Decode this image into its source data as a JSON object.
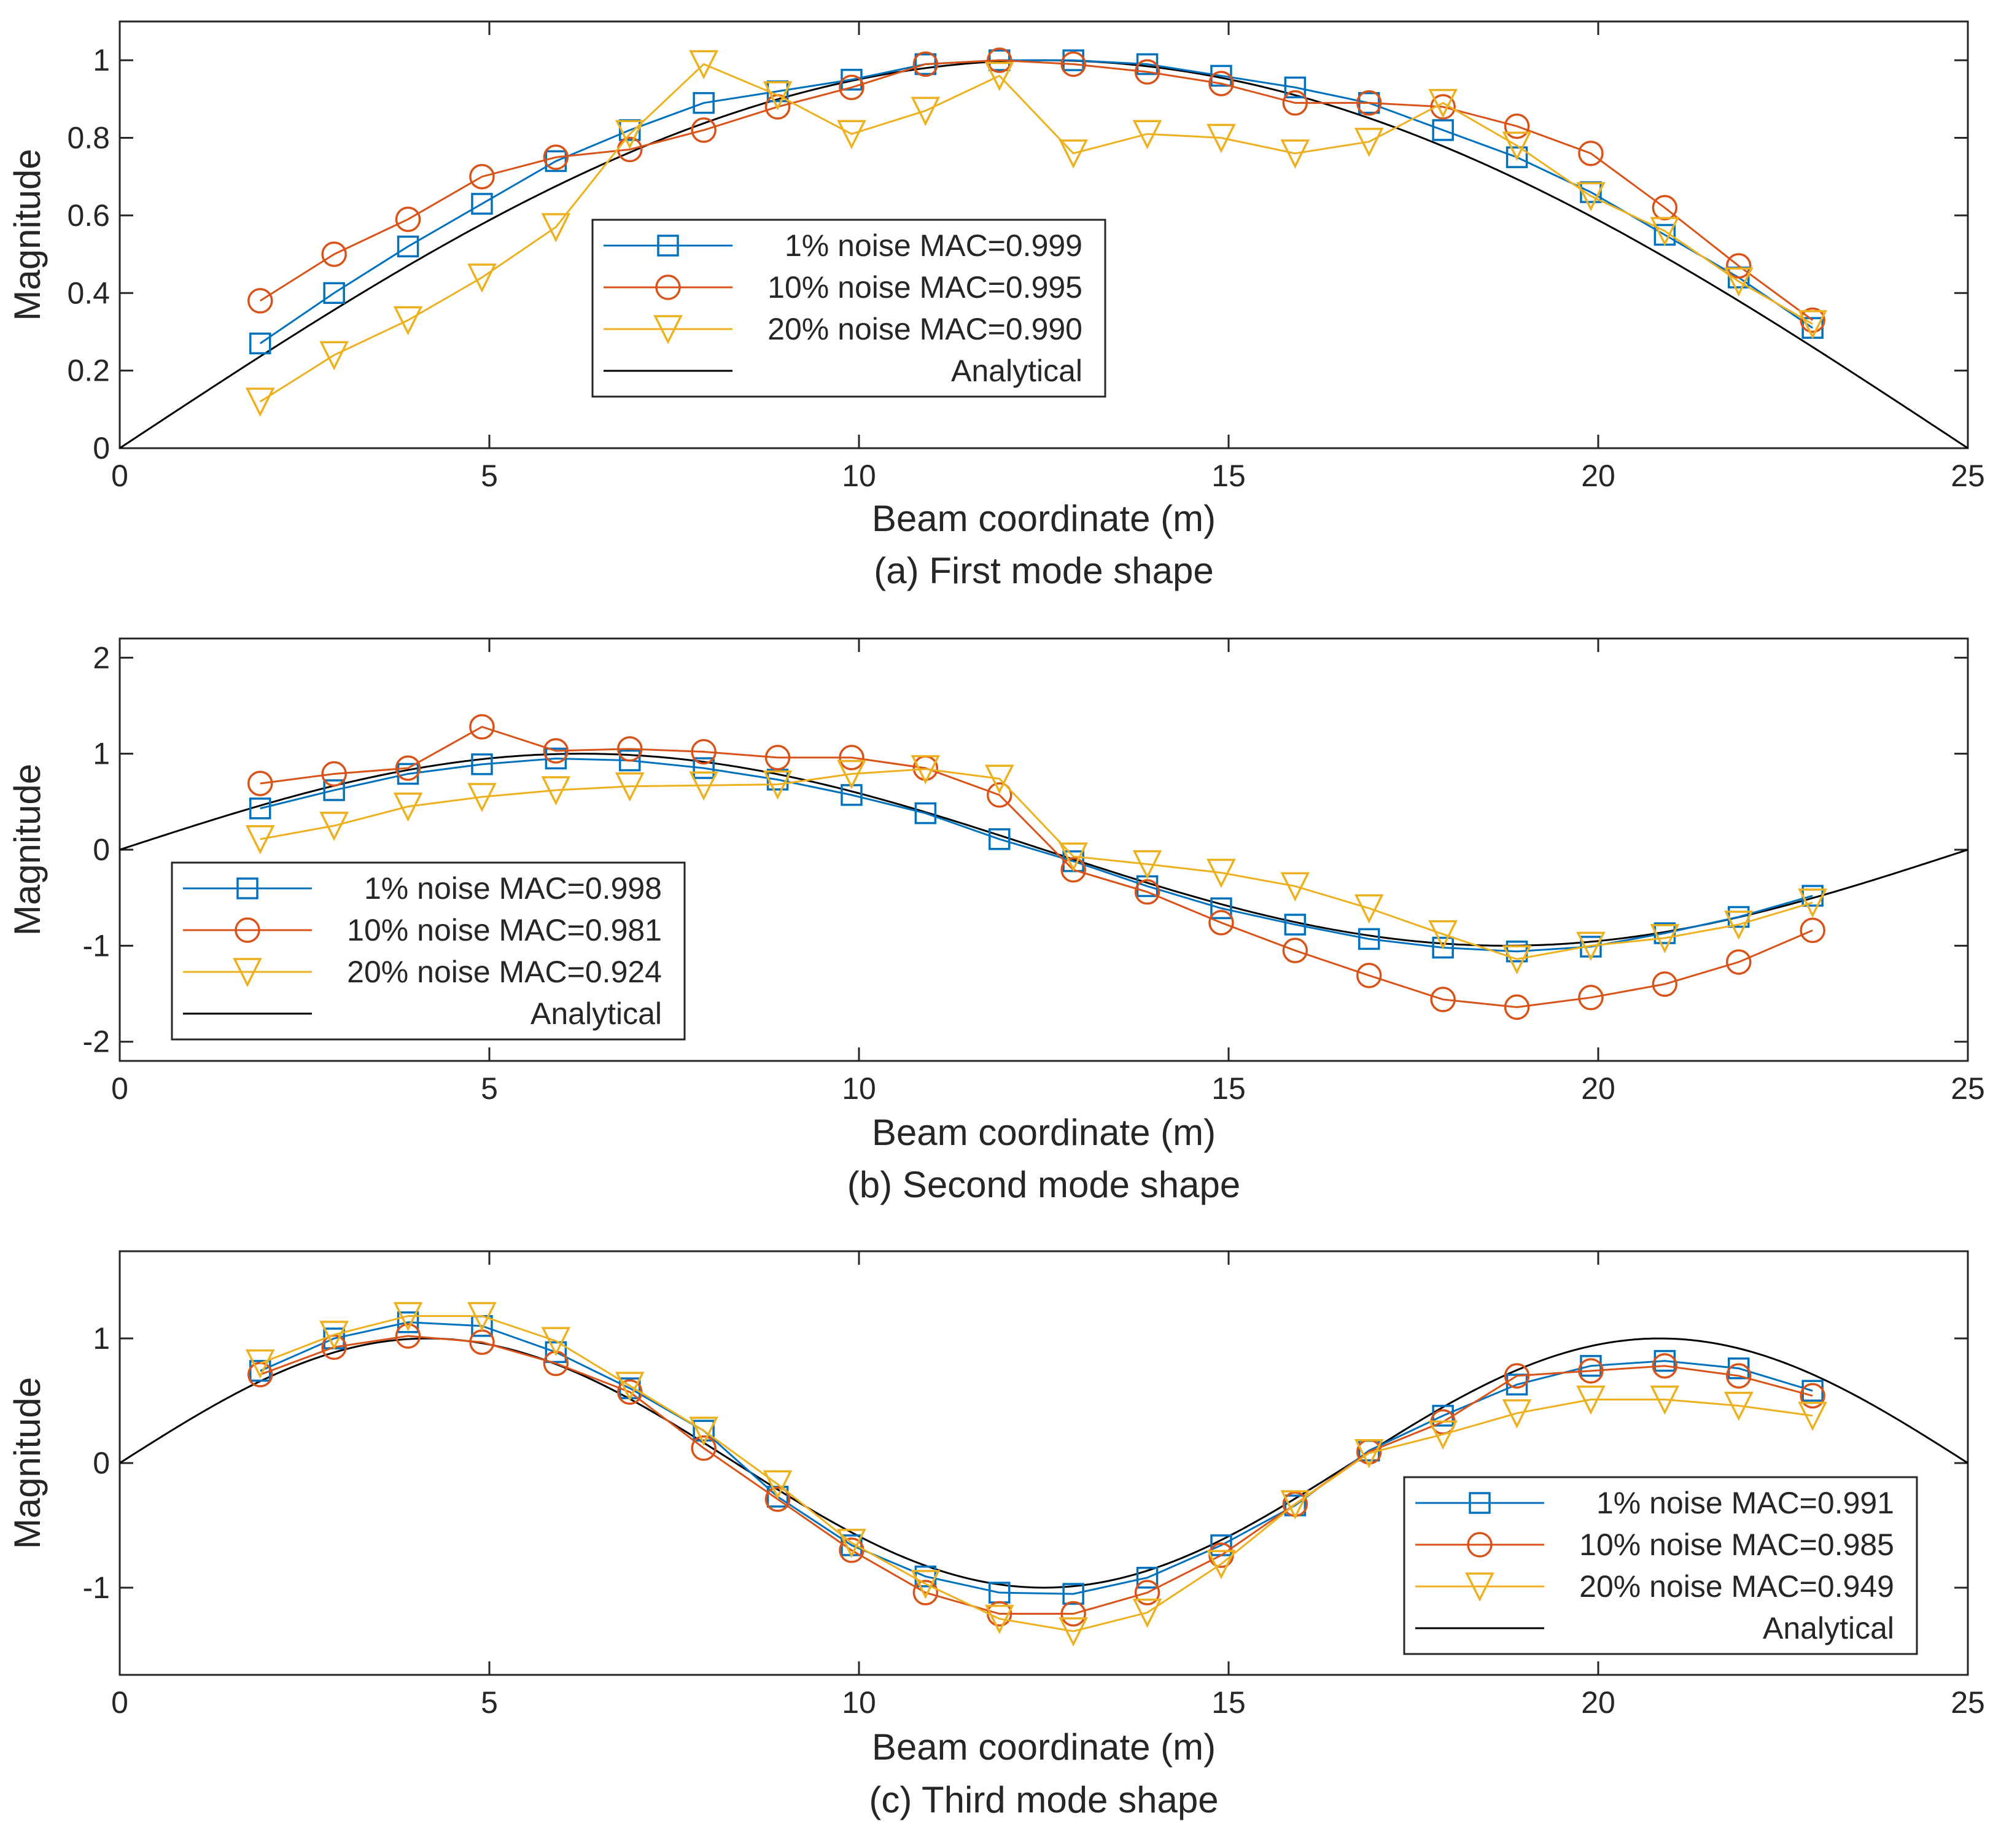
{
  "colors": {
    "noise1": "#0072BD",
    "noise10": "#D95319",
    "noise20": "#EDB120",
    "analytical": "#000000",
    "axis": "#262626"
  },
  "chart_data": [
    {
      "type": "line",
      "caption": "(a) First mode shape",
      "xlabel": "Beam coordinate (m)",
      "ylabel": "Magnitude",
      "xlim": [
        0,
        25
      ],
      "ylim": [
        0,
        1.1
      ],
      "xticks": [
        0,
        5,
        10,
        15,
        20,
        25
      ],
      "yticks": [
        0,
        0.2,
        0.4,
        0.6,
        0.8,
        1
      ],
      "ytick_labels": [
        "0",
        "0.2",
        "0.4",
        "0.6",
        "0.8",
        "1"
      ],
      "legend_position": "center-left",
      "analytical": {
        "name": "Analytical",
        "mode": 1,
        "length": 25
      },
      "x": [
        1.9,
        2.9,
        3.9,
        4.9,
        5.9,
        6.9,
        7.9,
        8.9,
        9.9,
        10.9,
        11.9,
        12.9,
        13.9,
        14.9,
        15.9,
        16.9,
        17.9,
        18.9,
        19.9,
        20.9,
        21.9,
        22.9
      ],
      "series": [
        {
          "name": "1% noise MAC=0.999",
          "marker": "square",
          "values": [
            0.27,
            0.4,
            0.52,
            0.63,
            0.74,
            0.82,
            0.89,
            0.92,
            0.95,
            0.99,
            1.0,
            1.0,
            0.99,
            0.96,
            0.93,
            0.89,
            0.82,
            0.75,
            0.66,
            0.55,
            0.44,
            0.31
          ]
        },
        {
          "name": "10% noise MAC=0.995",
          "marker": "circle",
          "values": [
            0.38,
            0.5,
            0.59,
            0.7,
            0.75,
            0.77,
            0.82,
            0.88,
            0.93,
            0.99,
            1.0,
            0.99,
            0.97,
            0.94,
            0.89,
            0.89,
            0.88,
            0.83,
            0.76,
            0.62,
            0.47,
            0.33
          ]
        },
        {
          "name": "20% noise MAC=0.990",
          "marker": "triangle-down",
          "values": [
            0.12,
            0.24,
            0.33,
            0.44,
            0.57,
            0.81,
            0.99,
            0.91,
            0.81,
            0.87,
            0.96,
            0.76,
            0.81,
            0.8,
            0.76,
            0.79,
            0.89,
            0.78,
            0.65,
            0.56,
            0.43,
            0.32
          ]
        }
      ]
    },
    {
      "type": "line",
      "caption": "(b) Second mode shape",
      "xlabel": "Beam coordinate (m)",
      "ylabel": "Magnitude",
      "xlim": [
        0,
        25
      ],
      "ylim": [
        -2.2,
        2.2
      ],
      "xticks": [
        0,
        5,
        10,
        15,
        20,
        25
      ],
      "yticks": [
        -2,
        -1,
        0,
        1,
        2
      ],
      "ytick_labels": [
        "-2",
        "-1",
        "0",
        "1",
        "2"
      ],
      "legend_position": "bottom-left",
      "analytical": {
        "name": "Analytical",
        "mode": 2,
        "length": 25
      },
      "x": [
        1.9,
        2.9,
        3.9,
        4.9,
        5.9,
        6.9,
        7.9,
        8.9,
        9.9,
        10.9,
        11.9,
        12.9,
        13.9,
        14.9,
        15.9,
        16.9,
        17.9,
        18.9,
        19.9,
        20.9,
        21.9,
        22.9
      ],
      "series": [
        {
          "name": "1% noise MAC=0.998",
          "marker": "square",
          "values": [
            0.43,
            0.62,
            0.79,
            0.89,
            0.95,
            0.93,
            0.85,
            0.73,
            0.57,
            0.38,
            0.11,
            -0.12,
            -0.38,
            -0.61,
            -0.78,
            -0.93,
            -1.02,
            -1.06,
            -1.01,
            -0.87,
            -0.7,
            -0.48
          ]
        },
        {
          "name": "10% noise MAC=0.981",
          "marker": "circle",
          "values": [
            0.69,
            0.79,
            0.85,
            1.28,
            1.03,
            1.05,
            1.02,
            0.96,
            0.96,
            0.85,
            0.57,
            -0.21,
            -0.44,
            -0.76,
            -1.05,
            -1.31,
            -1.56,
            -1.64,
            -1.54,
            -1.4,
            -1.17,
            -0.84
          ]
        },
        {
          "name": "20% noise MAC=0.924",
          "marker": "triangle-down",
          "values": [
            0.11,
            0.25,
            0.45,
            0.55,
            0.62,
            0.66,
            0.67,
            0.68,
            0.79,
            0.84,
            0.74,
            -0.07,
            -0.15,
            -0.24,
            -0.38,
            -0.61,
            -0.88,
            -1.14,
            -1.0,
            -0.92,
            -0.78,
            -0.55
          ]
        }
      ]
    },
    {
      "type": "line",
      "caption": "(c) Third mode shape",
      "xlabel": "Beam coordinate (m)",
      "ylabel": "Magnitude",
      "xlim": [
        0,
        25
      ],
      "ylim": [
        -1.7,
        1.7
      ],
      "xticks": [
        0,
        5,
        10,
        15,
        20,
        25
      ],
      "yticks": [
        -1,
        0,
        1
      ],
      "ytick_labels": [
        "-1",
        "0",
        "1"
      ],
      "legend_position": "bottom-right",
      "analytical": {
        "name": "Analytical",
        "mode": 3,
        "length": 25
      },
      "x": [
        1.9,
        2.9,
        3.9,
        4.9,
        5.9,
        6.9,
        7.9,
        8.9,
        9.9,
        10.9,
        11.9,
        12.9,
        13.9,
        14.9,
        15.9,
        16.9,
        17.9,
        18.9,
        19.9,
        20.9,
        21.9,
        22.9
      ],
      "series": [
        {
          "name": "1% noise MAC=0.991",
          "marker": "square",
          "values": [
            0.74,
            1.0,
            1.13,
            1.1,
            0.89,
            0.6,
            0.26,
            -0.27,
            -0.66,
            -0.91,
            -1.04,
            -1.05,
            -0.92,
            -0.66,
            -0.34,
            0.1,
            0.38,
            0.63,
            0.78,
            0.82,
            0.76,
            0.58
          ]
        },
        {
          "name": "10% noise MAC=0.985",
          "marker": "circle",
          "values": [
            0.71,
            0.93,
            1.02,
            0.97,
            0.8,
            0.57,
            0.12,
            -0.29,
            -0.7,
            -1.04,
            -1.21,
            -1.21,
            -1.04,
            -0.74,
            -0.33,
            0.09,
            0.33,
            0.7,
            0.74,
            0.78,
            0.7,
            0.54
          ]
        },
        {
          "name": "20% noise MAC=0.949",
          "marker": "triangle-down",
          "values": [
            0.8,
            1.03,
            1.18,
            1.18,
            0.98,
            0.62,
            0.26,
            -0.17,
            -0.64,
            -0.97,
            -1.25,
            -1.35,
            -1.2,
            -0.81,
            -0.33,
            0.08,
            0.23,
            0.4,
            0.51,
            0.51,
            0.46,
            0.38
          ]
        }
      ]
    }
  ]
}
